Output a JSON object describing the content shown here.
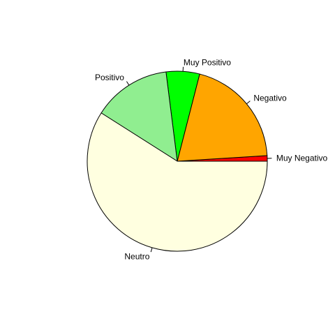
{
  "chart_data": {
    "type": "pie",
    "title": "",
    "slices": [
      {
        "label": "Muy Negativo",
        "value": 1.0,
        "color": "#FF0000"
      },
      {
        "label": "Negativo",
        "value": 20.0,
        "color": "#FFA500"
      },
      {
        "label": "Muy Positivo",
        "value": 6.0,
        "color": "#00FF00"
      },
      {
        "label": "Positivo",
        "value": 14.0,
        "color": "#90EE90"
      },
      {
        "label": "Neutro",
        "value": 59.0,
        "color": "#FFFFE0"
      }
    ],
    "legend": "none"
  }
}
